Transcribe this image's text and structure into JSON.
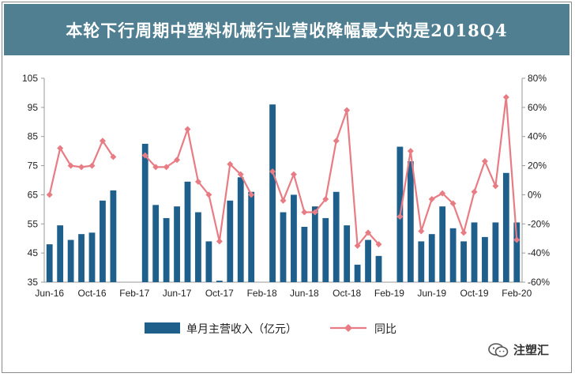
{
  "title": "本轮下行周期中塑料机械行业营收降幅最大的是2018Q4",
  "watermark": "注塑汇",
  "colors": {
    "title_bg": "#4f7f91",
    "bar": "#1f5f8b",
    "line": "#e87c84"
  },
  "chart_data": {
    "type": "bar",
    "left_axis": {
      "min": 35,
      "max": 105,
      "ticks": [
        35,
        45,
        55,
        65,
        75,
        85,
        95,
        105
      ]
    },
    "right_axis": {
      "min": -60,
      "max": 80,
      "ticks": [
        "-60%",
        "-40%",
        "-20%",
        "0%",
        "20%",
        "40%",
        "60%",
        "80%"
      ]
    },
    "x_tick_labels": [
      "Jun-16",
      "Oct-16",
      "Feb-17",
      "Jun-17",
      "Oct-17",
      "Feb-18",
      "Jun-18",
      "Oct-18",
      "Feb-19",
      "Jun-19",
      "Oct-19",
      "Feb-20"
    ],
    "x_tick_indices": [
      0,
      4,
      8,
      12,
      16,
      20,
      24,
      28,
      32,
      36,
      40,
      44
    ],
    "months": 45,
    "series": [
      {
        "name": "单月主营收入（亿元）",
        "kind": "bar",
        "axis": "left",
        "values": [
          48,
          54.5,
          49.5,
          51.5,
          52,
          63,
          66.5,
          null,
          null,
          82.5,
          61.5,
          57,
          61,
          69.5,
          59,
          49,
          35.5,
          63,
          71,
          66,
          null,
          96,
          59,
          65,
          54,
          61,
          57,
          66,
          54.5,
          41,
          49.5,
          44,
          null,
          81.5,
          76.5,
          49,
          51.5,
          61,
          53.5,
          49,
          55.5,
          50.5,
          55.5,
          72.5,
          55.5
        ]
      },
      {
        "name": "同比",
        "kind": "line",
        "axis": "right",
        "values": [
          0,
          32,
          20,
          19,
          20,
          37,
          26,
          null,
          null,
          27,
          19,
          19,
          24,
          45,
          9,
          0,
          -32,
          21,
          14,
          0,
          null,
          16,
          -4,
          14,
          -12,
          -12,
          -3,
          37,
          58,
          -35,
          -26,
          -34,
          null,
          -15,
          30,
          -25,
          -3,
          1,
          -6,
          -26,
          2,
          23,
          6,
          67,
          -31
        ]
      }
    ]
  }
}
